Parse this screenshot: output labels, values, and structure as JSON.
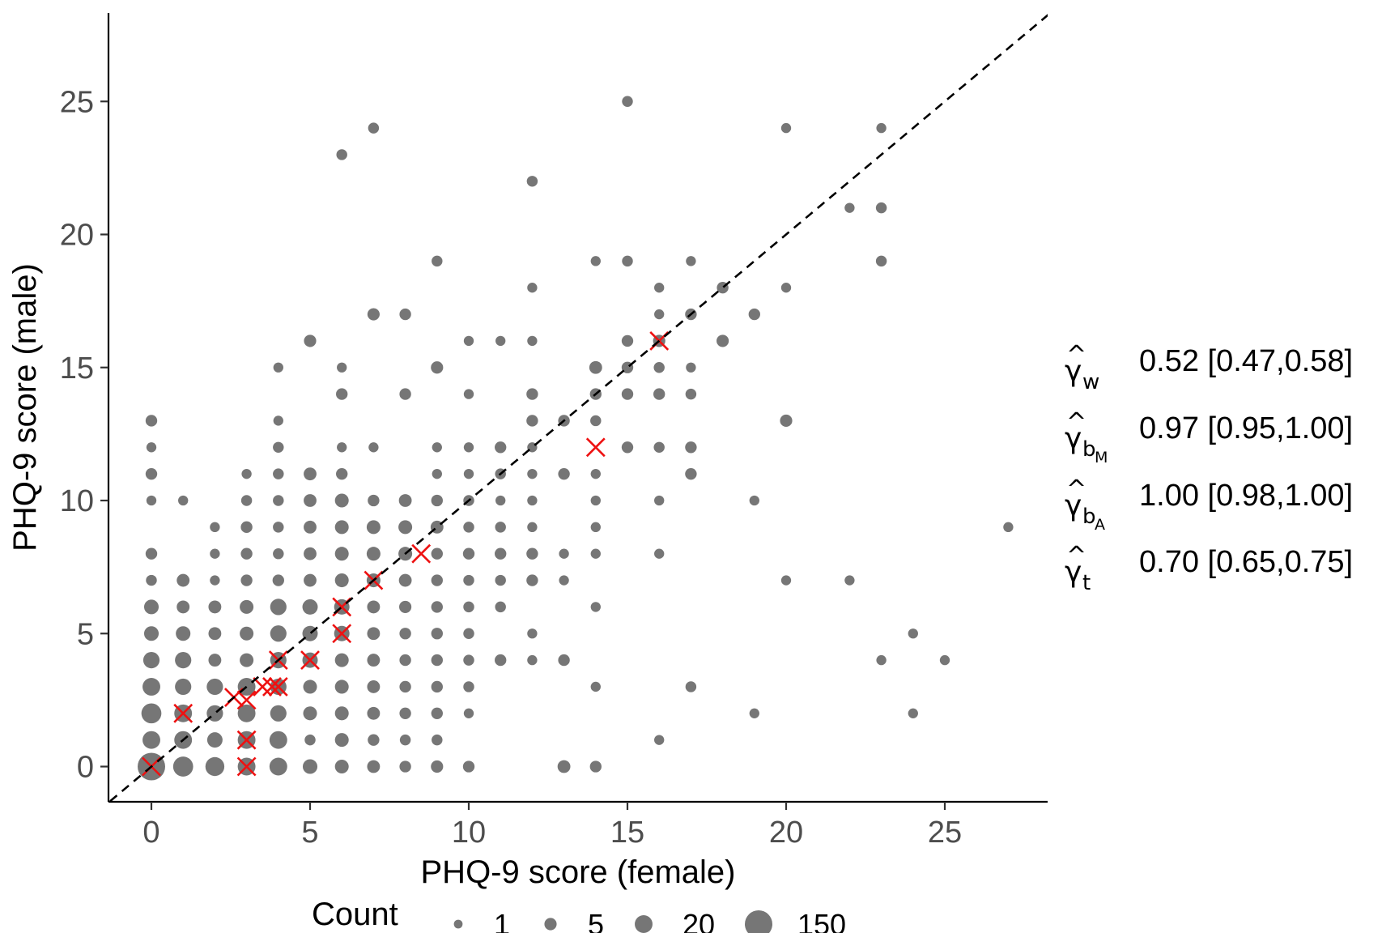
{
  "chart_data": {
    "type": "scatter",
    "title": "",
    "xlabel": "PHQ-9 score (female)",
    "ylabel": "PHQ-9 score (male)",
    "xlim": [
      -1.3,
      28.4
    ],
    "ylim": [
      -1.3,
      28.3
    ],
    "xticks": [
      0,
      5,
      10,
      15,
      20,
      25
    ],
    "yticks": [
      0,
      5,
      10,
      15,
      20,
      25
    ],
    "grid": false,
    "reference_line": {
      "style": "dashed",
      "slope": 1,
      "intercept": 0
    },
    "point_color": "#767676",
    "cross_color": "#ee1111",
    "legend": {
      "title": "Count",
      "position": "bottom",
      "entries": [
        {
          "label": "1",
          "value": 1
        },
        {
          "label": "5",
          "value": 5
        },
        {
          "label": "20",
          "value": 20
        },
        {
          "label": "150",
          "value": 150
        }
      ]
    },
    "series": [
      {
        "kind": "count_points",
        "points": [
          [
            0,
            0,
            150
          ],
          [
            0,
            1,
            20
          ],
          [
            0,
            2,
            30
          ],
          [
            0,
            3,
            20
          ],
          [
            0,
            4,
            15
          ],
          [
            0,
            5,
            10
          ],
          [
            0,
            6,
            10
          ],
          [
            0,
            7,
            3
          ],
          [
            0,
            8,
            4
          ],
          [
            0,
            10,
            2
          ],
          [
            0,
            11,
            4
          ],
          [
            0,
            12,
            2
          ],
          [
            0,
            13,
            4
          ],
          [
            1,
            0,
            30
          ],
          [
            1,
            1,
            20
          ],
          [
            1,
            2,
            20
          ],
          [
            1,
            3,
            15
          ],
          [
            1,
            4,
            15
          ],
          [
            1,
            5,
            10
          ],
          [
            1,
            6,
            6
          ],
          [
            1,
            7,
            6
          ],
          [
            1,
            10,
            2
          ],
          [
            2,
            0,
            25
          ],
          [
            2,
            1,
            12
          ],
          [
            2,
            2,
            15
          ],
          [
            2,
            3,
            15
          ],
          [
            2,
            4,
            6
          ],
          [
            2,
            5,
            6
          ],
          [
            2,
            6,
            6
          ],
          [
            2,
            7,
            2
          ],
          [
            2,
            8,
            2
          ],
          [
            2,
            9,
            2
          ],
          [
            3,
            0,
            20
          ],
          [
            3,
            1,
            20
          ],
          [
            3,
            2,
            20
          ],
          [
            3,
            3,
            20
          ],
          [
            3,
            4,
            8
          ],
          [
            3,
            5,
            8
          ],
          [
            3,
            6,
            8
          ],
          [
            3,
            7,
            4
          ],
          [
            3,
            8,
            4
          ],
          [
            3,
            9,
            4
          ],
          [
            3,
            10,
            3
          ],
          [
            3,
            11,
            2
          ],
          [
            4,
            0,
            20
          ],
          [
            4,
            1,
            20
          ],
          [
            4,
            2,
            15
          ],
          [
            4,
            3,
            15
          ],
          [
            4,
            4,
            15
          ],
          [
            4,
            5,
            15
          ],
          [
            4,
            6,
            15
          ],
          [
            4,
            7,
            4
          ],
          [
            4,
            8,
            3
          ],
          [
            4,
            9,
            3
          ],
          [
            4,
            10,
            3
          ],
          [
            4,
            11,
            3
          ],
          [
            4,
            12,
            3
          ],
          [
            4,
            13,
            2
          ],
          [
            4,
            15,
            2
          ],
          [
            5,
            0,
            10
          ],
          [
            5,
            1,
            3
          ],
          [
            5,
            2,
            8
          ],
          [
            5,
            3,
            8
          ],
          [
            5,
            4,
            12
          ],
          [
            5,
            5,
            12
          ],
          [
            5,
            6,
            12
          ],
          [
            5,
            7,
            6
          ],
          [
            5,
            8,
            6
          ],
          [
            5,
            9,
            6
          ],
          [
            5,
            10,
            6
          ],
          [
            5,
            11,
            6
          ],
          [
            5,
            16,
            5
          ],
          [
            6,
            0,
            8
          ],
          [
            6,
            1,
            8
          ],
          [
            6,
            2,
            8
          ],
          [
            6,
            3,
            8
          ],
          [
            6,
            4,
            8
          ],
          [
            6,
            5,
            12
          ],
          [
            6,
            6,
            12
          ],
          [
            6,
            7,
            8
          ],
          [
            6,
            8,
            8
          ],
          [
            6,
            9,
            8
          ],
          [
            6,
            10,
            8
          ],
          [
            6,
            11,
            4
          ],
          [
            6,
            12,
            2
          ],
          [
            6,
            14,
            4
          ],
          [
            6,
            15,
            2
          ],
          [
            6,
            23,
            3
          ],
          [
            7,
            0,
            6
          ],
          [
            7,
            1,
            4
          ],
          [
            7,
            2,
            6
          ],
          [
            7,
            3,
            6
          ],
          [
            7,
            4,
            6
          ],
          [
            7,
            5,
            6
          ],
          [
            7,
            6,
            6
          ],
          [
            7,
            7,
            8
          ],
          [
            7,
            8,
            8
          ],
          [
            7,
            9,
            8
          ],
          [
            7,
            10,
            4
          ],
          [
            7,
            12,
            2
          ],
          [
            7,
            17,
            5
          ],
          [
            7,
            24,
            3
          ],
          [
            8,
            0,
            4
          ],
          [
            8,
            1,
            3
          ],
          [
            8,
            2,
            4
          ],
          [
            8,
            3,
            4
          ],
          [
            8,
            4,
            4
          ],
          [
            8,
            5,
            4
          ],
          [
            8,
            6,
            5
          ],
          [
            8,
            7,
            6
          ],
          [
            8,
            8,
            8
          ],
          [
            8,
            9,
            8
          ],
          [
            8,
            10,
            6
          ],
          [
            8,
            14,
            4
          ],
          [
            8,
            17,
            4
          ],
          [
            9,
            0,
            5
          ],
          [
            9,
            1,
            3
          ],
          [
            9,
            2,
            4
          ],
          [
            9,
            3,
            4
          ],
          [
            9,
            4,
            4
          ],
          [
            9,
            5,
            4
          ],
          [
            9,
            6,
            4
          ],
          [
            9,
            7,
            4
          ],
          [
            9,
            8,
            4
          ],
          [
            9,
            9,
            6
          ],
          [
            9,
            10,
            4
          ],
          [
            9,
            11,
            2
          ],
          [
            9,
            12,
            2
          ],
          [
            9,
            15,
            5
          ],
          [
            9,
            19,
            3
          ],
          [
            10,
            0,
            4
          ],
          [
            10,
            2,
            2
          ],
          [
            10,
            3,
            3
          ],
          [
            10,
            4,
            3
          ],
          [
            10,
            5,
            3
          ],
          [
            10,
            6,
            3
          ],
          [
            10,
            7,
            3
          ],
          [
            10,
            8,
            4
          ],
          [
            10,
            9,
            3
          ],
          [
            10,
            10,
            3
          ],
          [
            10,
            11,
            2
          ],
          [
            10,
            12,
            2
          ],
          [
            10,
            14,
            2
          ],
          [
            10,
            16,
            2
          ],
          [
            11,
            4,
            4
          ],
          [
            11,
            6,
            3
          ],
          [
            11,
            7,
            3
          ],
          [
            11,
            8,
            4
          ],
          [
            11,
            9,
            3
          ],
          [
            11,
            10,
            2
          ],
          [
            11,
            11,
            3
          ],
          [
            11,
            12,
            4
          ],
          [
            11,
            16,
            2
          ],
          [
            12,
            4,
            2
          ],
          [
            12,
            5,
            2
          ],
          [
            12,
            7,
            4
          ],
          [
            12,
            8,
            4
          ],
          [
            12,
            9,
            2
          ],
          [
            12,
            10,
            2
          ],
          [
            12,
            11,
            2
          ],
          [
            12,
            12,
            2
          ],
          [
            12,
            13,
            4
          ],
          [
            12,
            14,
            4
          ],
          [
            12,
            16,
            2
          ],
          [
            12,
            18,
            2
          ],
          [
            12,
            22,
            3
          ],
          [
            13,
            0,
            6
          ],
          [
            13,
            4,
            4
          ],
          [
            13,
            7,
            2
          ],
          [
            13,
            8,
            2
          ],
          [
            13,
            11,
            4
          ],
          [
            13,
            13,
            4
          ],
          [
            14,
            0,
            4
          ],
          [
            14,
            3,
            2
          ],
          [
            14,
            6,
            2
          ],
          [
            14,
            8,
            2
          ],
          [
            14,
            9,
            2
          ],
          [
            14,
            10,
            2
          ],
          [
            14,
            11,
            2
          ],
          [
            14,
            13,
            3
          ],
          [
            14,
            14,
            4
          ],
          [
            14,
            15,
            6
          ],
          [
            14,
            19,
            2
          ],
          [
            15,
            12,
            4
          ],
          [
            15,
            14,
            4
          ],
          [
            15,
            15,
            4
          ],
          [
            15,
            16,
            4
          ],
          [
            15,
            19,
            3
          ],
          [
            15,
            25,
            3
          ],
          [
            16,
            1,
            2
          ],
          [
            16,
            8,
            2
          ],
          [
            16,
            10,
            2
          ],
          [
            16,
            12,
            3
          ],
          [
            16,
            14,
            4
          ],
          [
            16,
            15,
            3
          ],
          [
            16,
            16,
            5
          ],
          [
            16,
            17,
            2
          ],
          [
            16,
            18,
            2
          ],
          [
            17,
            3,
            3
          ],
          [
            17,
            11,
            4
          ],
          [
            17,
            12,
            4
          ],
          [
            17,
            14,
            3
          ],
          [
            17,
            15,
            2
          ],
          [
            17,
            17,
            4
          ],
          [
            17,
            19,
            2
          ],
          [
            18,
            16,
            5
          ],
          [
            18,
            18,
            4
          ],
          [
            19,
            2,
            2
          ],
          [
            19,
            10,
            2
          ],
          [
            19,
            17,
            4
          ],
          [
            20,
            7,
            2
          ],
          [
            20,
            13,
            5
          ],
          [
            20,
            18,
            2
          ],
          [
            20,
            24,
            2
          ],
          [
            22,
            7,
            2
          ],
          [
            22,
            21,
            2
          ],
          [
            23,
            4,
            2
          ],
          [
            23,
            19,
            3
          ],
          [
            23,
            21,
            3
          ],
          [
            23,
            24,
            2
          ],
          [
            24,
            2,
            2
          ],
          [
            24,
            5,
            2
          ],
          [
            25,
            4,
            2
          ],
          [
            27,
            9,
            2
          ]
        ]
      },
      {
        "kind": "cross_markers",
        "points": [
          [
            0,
            0
          ],
          [
            1,
            2
          ],
          [
            2.6,
            2.6
          ],
          [
            3,
            2.5
          ],
          [
            3,
            1
          ],
          [
            3,
            0
          ],
          [
            3.5,
            3
          ],
          [
            3.8,
            3
          ],
          [
            4,
            4
          ],
          [
            4,
            3
          ],
          [
            5,
            4
          ],
          [
            6,
            6
          ],
          [
            6,
            5
          ],
          [
            7,
            7
          ],
          [
            8.5,
            8
          ],
          [
            14,
            12
          ],
          [
            16,
            16
          ]
        ]
      }
    ],
    "annotations": [
      {
        "symbol": "γ",
        "subscript": "w",
        "subsub": "",
        "text": "0.52 [0.47,0.58]"
      },
      {
        "symbol": "γ",
        "subscript": "b",
        "subsub": "M",
        "text": "0.97 [0.95,1.00]"
      },
      {
        "symbol": "γ",
        "subscript": "b",
        "subsub": "A",
        "text": "1.00 [0.98,1.00]"
      },
      {
        "symbol": "γ",
        "subscript": "t",
        "subsub": "",
        "text": "0.70 [0.65,0.75]"
      }
    ]
  }
}
